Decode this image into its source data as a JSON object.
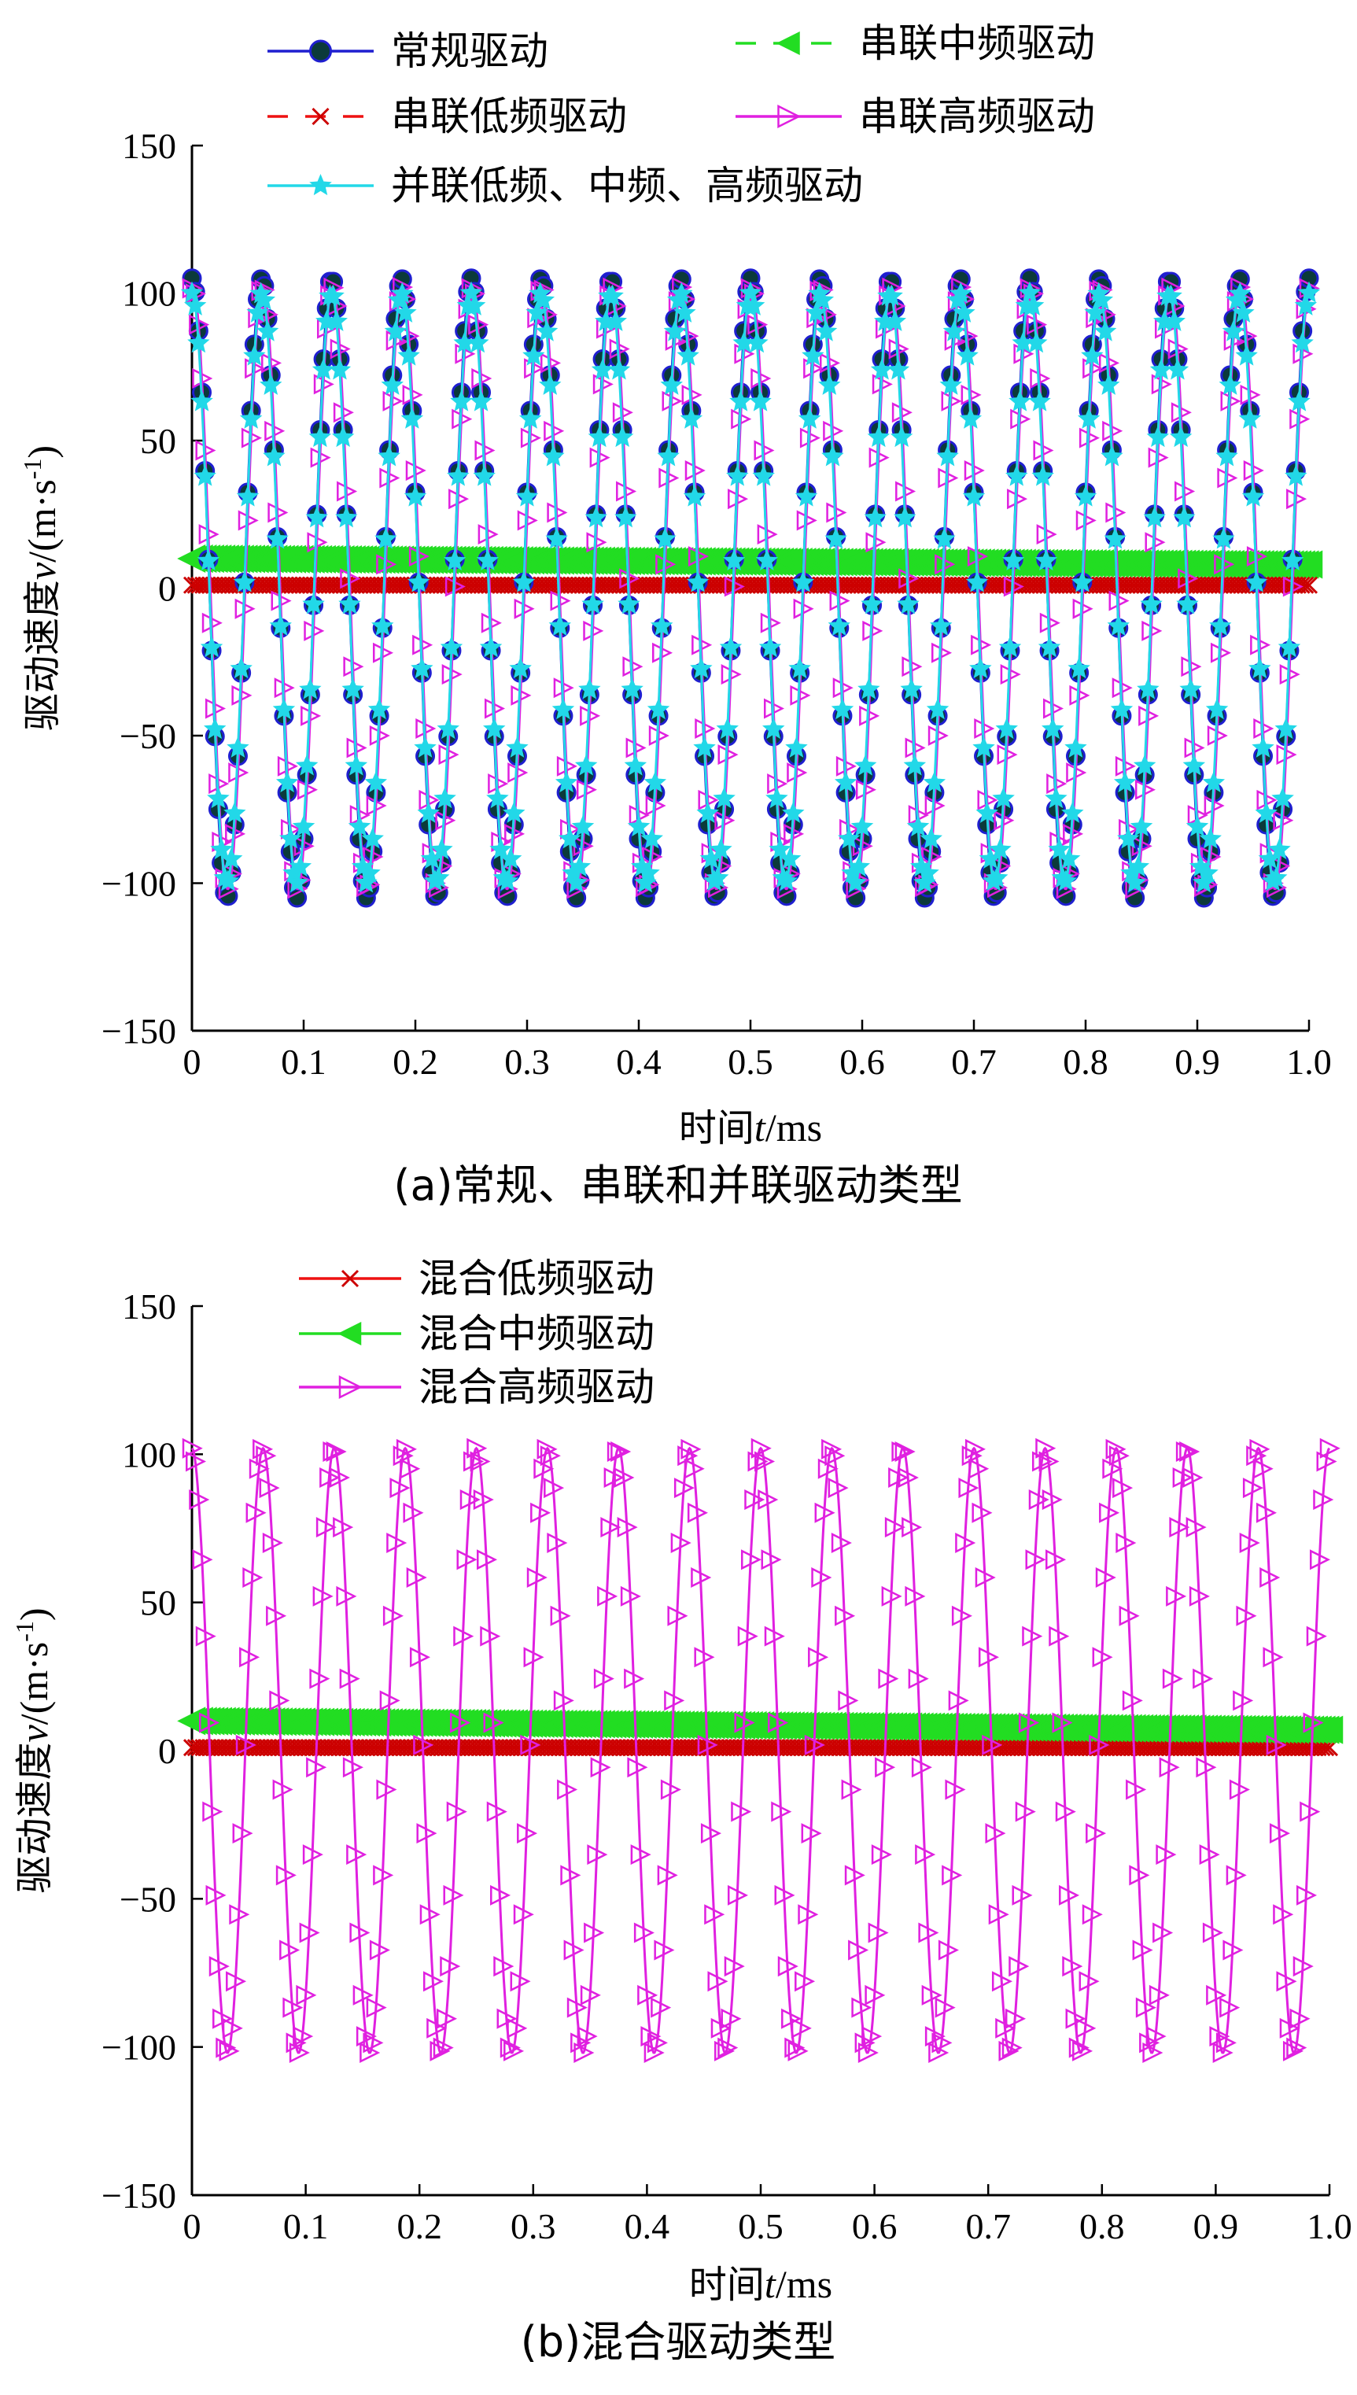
{
  "chart_data": [
    {
      "type": "line",
      "caption": "(a)常规、串联和并联驱动类型",
      "xlabel_prefix": "时间",
      "xlabel_var": "t",
      "xlabel_unit": "/ms",
      "ylabel_prefix": "驱动速度",
      "ylabel_var": "v",
      "ylabel_unit": "/(m·s",
      "ylabel_sup": "-1",
      "ylabel_close": ")",
      "xlim": [
        0,
        1.0
      ],
      "ylim": [
        -150,
        150
      ],
      "x_ticks": [
        "0",
        "0.1",
        "0.2",
        "0.3",
        "0.4",
        "0.5",
        "0.6",
        "0.7",
        "0.8",
        "0.9",
        "1.0"
      ],
      "y_ticks": [
        "−150",
        "−100",
        "−50",
        "0",
        "50",
        "100",
        "150"
      ],
      "y_tick_values": [
        -150,
        -100,
        -50,
        0,
        50,
        100,
        150
      ],
      "grid": false,
      "legend_position": "top",
      "series": [
        {
          "name": "常规驱动",
          "kind": "osc",
          "color": "#1f1fd0",
          "marker": "circle",
          "marker_fill": "#0b3a3a",
          "marker_stroke": "#1f1fd0",
          "linestyle": "solid",
          "amplitude": 105,
          "frequency": 16,
          "phase_deg": 90
        },
        {
          "name": "串联中频驱动",
          "kind": "flat",
          "color": "#22dd22",
          "marker": "triangle-left",
          "marker_fill": "#22dd22",
          "marker_stroke": "#22dd22",
          "linestyle": "dashed",
          "y_start": 10,
          "y_end": 8
        },
        {
          "name": "串联低频驱动",
          "kind": "flat",
          "color": "#ee1111",
          "marker": "x",
          "marker_fill": "none",
          "marker_stroke": "#cc0000",
          "linestyle": "dashed",
          "y_start": 1,
          "y_end": 1
        },
        {
          "name": "串联高频驱动",
          "kind": "osc",
          "color": "#e020e0",
          "marker": "triangle-right",
          "marker_fill": "none",
          "marker_stroke": "#e020e0",
          "linestyle": "solid",
          "amplitude": 102,
          "frequency": 16,
          "phase_deg": 85
        },
        {
          "name": "并联低频、中频、高频驱动",
          "kind": "osc",
          "color": "#22d8e8",
          "marker": "star",
          "marker_fill": "#22d8e8",
          "marker_stroke": "#22d8e8",
          "linestyle": "solid",
          "amplitude": 100,
          "frequency": 16,
          "phase_deg": 90
        }
      ]
    },
    {
      "type": "line",
      "caption": "(b)混合驱动类型",
      "xlabel_prefix": "时间",
      "xlabel_var": "t",
      "xlabel_unit": "/ms",
      "ylabel_prefix": "驱动速度",
      "ylabel_var": "v",
      "ylabel_unit": "/(m·s",
      "ylabel_sup": "-1",
      "ylabel_close": ")",
      "xlim": [
        0,
        1.0
      ],
      "ylim": [
        -150,
        150
      ],
      "x_ticks": [
        "0",
        "0.1",
        "0.2",
        "0.3",
        "0.4",
        "0.5",
        "0.6",
        "0.7",
        "0.8",
        "0.9",
        "1.0"
      ],
      "y_ticks": [
        "−150",
        "−100",
        "−50",
        "0",
        "50",
        "100",
        "150"
      ],
      "y_tick_values": [
        -150,
        -100,
        -50,
        0,
        50,
        100,
        150
      ],
      "grid": false,
      "legend_position": "top-left",
      "series": [
        {
          "name": "混合低频驱动",
          "kind": "flat",
          "color": "#ee1111",
          "marker": "x",
          "marker_fill": "none",
          "marker_stroke": "#cc0000",
          "linestyle": "solid",
          "y_start": 1,
          "y_end": 1
        },
        {
          "name": "混合中频驱动",
          "kind": "flat",
          "color": "#22dd22",
          "marker": "triangle-left",
          "marker_fill": "#22dd22",
          "marker_stroke": "#22dd22",
          "linestyle": "solid",
          "y_start": 10,
          "y_end": 7
        },
        {
          "name": "混合高频驱动",
          "kind": "osc",
          "color": "#e020e0",
          "marker": "triangle-right",
          "marker_fill": "none",
          "marker_stroke": "#e020e0",
          "linestyle": "solid",
          "amplitude": 102,
          "frequency": 16,
          "phase_deg": 90
        }
      ]
    }
  ]
}
